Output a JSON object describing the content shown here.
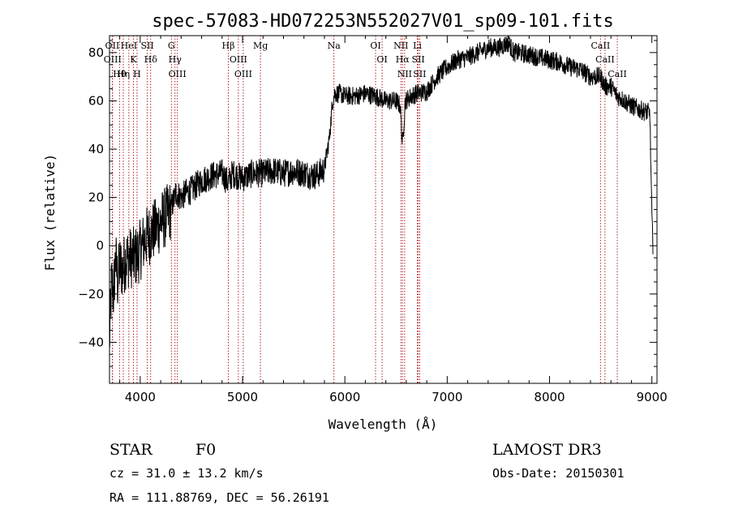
{
  "chart_data": {
    "type": "line",
    "title": "spec-57083-HD072253N552027V01_sp09-101.fits",
    "xlabel": "Wavelength (Å)",
    "ylabel": "Flux (relative)",
    "xlim": [
      3700,
      9050
    ],
    "ylim": [
      -57,
      87
    ],
    "x_ticks": [
      4000,
      5000,
      6000,
      7000,
      8000,
      9000
    ],
    "y_ticks": [
      -40,
      -20,
      0,
      20,
      40,
      60,
      80
    ],
    "series": [
      {
        "x": [
          3700,
          3720,
          3740,
          3760,
          3780,
          3800,
          3830,
          3860,
          3900,
          3950,
          4000,
          4050,
          4100,
          4150,
          4200,
          4250,
          4300,
          4350,
          4400,
          4450,
          4500,
          4600,
          4700,
          4800,
          4861,
          4900,
          5000,
          5100,
          5200,
          5300,
          5400,
          5500,
          5600,
          5700,
          5750,
          5800,
          5850,
          5880,
          5900,
          5950,
          6000,
          6100,
          6200,
          6300,
          6400,
          6500,
          6540,
          6563,
          6590,
          6650,
          6700,
          6800,
          6900,
          7000,
          7100,
          7200,
          7300,
          7400,
          7500,
          7550,
          7600,
          7650,
          7700,
          7800,
          7900,
          8000,
          8100,
          8200,
          8300,
          8400,
          8498,
          8542,
          8600,
          8662,
          8700,
          8800,
          8900,
          8980,
          9000,
          9010
        ],
        "values": [
          -40,
          -15,
          -20,
          -5,
          -15,
          -8,
          -10,
          -5,
          -5,
          -5,
          -2,
          3,
          5,
          7,
          10,
          12,
          15,
          22,
          20,
          22,
          23,
          27,
          29,
          30,
          26,
          30,
          28,
          30,
          30,
          31,
          30,
          31,
          30,
          29,
          30,
          32,
          45,
          60,
          63,
          63,
          62,
          62,
          63,
          62,
          60,
          60,
          58,
          42,
          60,
          62,
          63,
          64,
          70,
          74,
          77,
          78,
          80,
          82,
          82,
          83,
          84,
          80,
          80,
          79,
          78,
          77,
          76,
          74,
          73,
          70,
          70,
          66,
          66,
          62,
          61,
          58,
          56,
          55,
          12,
          0
        ]
      }
    ],
    "spectral_lines": [
      {
        "label": "Hθ",
        "wave": 3798
      },
      {
        "label": "OII",
        "wave": 3727
      },
      {
        "label": "OIII",
        "wave": 3730
      },
      {
        "label": "Hη",
        "wave": 3835
      },
      {
        "label": "K",
        "wave": 3934
      },
      {
        "label": "HeI",
        "wave": 3889
      },
      {
        "label": "H",
        "wave": 3969
      },
      {
        "label": "Hδ",
        "wave": 4102
      },
      {
        "label": "SII",
        "wave": 4069
      },
      {
        "label": "OIII",
        "wave": 4363
      },
      {
        "label": "Hγ",
        "wave": 4340
      },
      {
        "label": "G",
        "wave": 4305
      },
      {
        "label": "OIII",
        "wave": 5007
      },
      {
        "label": "OIII",
        "wave": 4959
      },
      {
        "label": "Hβ",
        "wave": 4861
      },
      {
        "label": "Mg",
        "wave": 5175
      },
      {
        "label": "Na",
        "wave": 5893
      },
      {
        "label": "OI",
        "wave": 6300
      },
      {
        "label": "OI",
        "wave": 6364
      },
      {
        "label": "Hα",
        "wave": 6563
      },
      {
        "label": "NII",
        "wave": 6548
      },
      {
        "label": "NII",
        "wave": 6584
      },
      {
        "label": "SII",
        "wave": 6717
      },
      {
        "label": "Li",
        "wave": 6708
      },
      {
        "label": "SII",
        "wave": 6731
      },
      {
        "label": "CaII",
        "wave": 8542
      },
      {
        "label": "CaII",
        "wave": 8498
      },
      {
        "label": "CaII",
        "wave": 8662
      }
    ]
  },
  "info": {
    "object_class": "STAR",
    "subclass": "F0",
    "survey": "LAMOST DR3",
    "redshift": "cz = 31.0 ± 13.2 km/s",
    "obs_date": "Obs-Date: 20150301",
    "coords": "RA = 111.88769, DEC =  56.26191"
  },
  "colors": {
    "spectrum": "#000000",
    "line_marker": "#b22222",
    "axes": "#000000"
  }
}
